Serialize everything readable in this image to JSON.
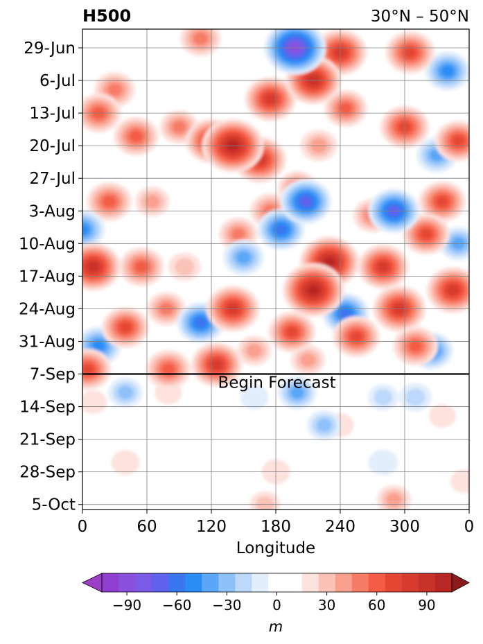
{
  "chart_data": {
    "type": "heatmap",
    "title_left": "H500",
    "title_right": "30°N – 50°N",
    "xlabel": "Longitude",
    "ylabel": "",
    "x_ticks": [
      "0",
      "60",
      "120",
      "180",
      "240",
      "300",
      "0"
    ],
    "x_tick_values": [
      0,
      60,
      120,
      180,
      240,
      300,
      360
    ],
    "xlim": [
      0,
      360
    ],
    "y_ticks": [
      "29-Jun",
      "6-Jul",
      "13-Jul",
      "20-Jul",
      "27-Jul",
      "3-Aug",
      "10-Aug",
      "17-Aug",
      "24-Aug",
      "31-Aug",
      "7-Sep",
      "14-Sep",
      "21-Sep",
      "28-Sep",
      "5-Oct"
    ],
    "y_axis_inverted": true,
    "grid": true,
    "annotation": {
      "text": "Begin Forecast",
      "date": "7-Sep"
    },
    "colorbar": {
      "label": "m",
      "ticks": [
        "−90",
        "−60",
        "−30",
        "0",
        "30",
        "60",
        "90"
      ],
      "levels": [
        -105,
        -95,
        -85,
        -75,
        -65,
        -55,
        -45,
        -35,
        -25,
        -15,
        -5,
        5,
        15,
        25,
        35,
        45,
        55,
        65,
        75,
        85,
        95,
        105
      ],
      "extend": "both",
      "colors": [
        "#8e3fcf",
        "#8a4fdc",
        "#7a5ae6",
        "#5e62ec",
        "#3a76f0",
        "#2a8cf5",
        "#5aa6f7",
        "#8fc1f9",
        "#bcd9fb",
        "#e3eefc",
        "#ffffff",
        "#ffffff",
        "#fde2de",
        "#fbc3b8",
        "#f9a08f",
        "#f77c66",
        "#f35b45",
        "#e54634",
        "#d63b2e",
        "#c93229",
        "#b82724"
      ],
      "under_color": "#9b3fc8",
      "over_color": "#8b1a1a"
    },
    "anomalies": [
      {
        "lon": 198,
        "date": "29-Jun",
        "value": -95
      },
      {
        "lon": 340,
        "date": "4-Jul",
        "value": -55
      },
      {
        "lon": 30,
        "date": "8-Jul",
        "value": 45
      },
      {
        "lon": 110,
        "date": "27-Jun",
        "value": 45
      },
      {
        "lon": 240,
        "date": "30-Jun",
        "value": 75
      },
      {
        "lon": 305,
        "date": "30-Jun",
        "value": 65
      },
      {
        "lon": 175,
        "date": "10-Jul",
        "value": 70
      },
      {
        "lon": 215,
        "date": "6-Jul",
        "value": 80
      },
      {
        "lon": 245,
        "date": "12-Jul",
        "value": 50
      },
      {
        "lon": 140,
        "date": "20-Jul",
        "value": 95
      },
      {
        "lon": 120,
        "date": "19-Jul",
        "value": 70
      },
      {
        "lon": 165,
        "date": "23-Jul",
        "value": 75
      },
      {
        "lon": 300,
        "date": "16-Jul",
        "value": 65
      },
      {
        "lon": 350,
        "date": "19-Jul",
        "value": 60
      },
      {
        "lon": 90,
        "date": "16-Jul",
        "value": 40
      },
      {
        "lon": 50,
        "date": "18-Jul",
        "value": 55
      },
      {
        "lon": 15,
        "date": "13-Jul",
        "value": 55
      },
      {
        "lon": 220,
        "date": "20-Jul",
        "value": 35
      },
      {
        "lon": 330,
        "date": "22-Jul",
        "value": -45
      },
      {
        "lon": 25,
        "date": "1-Aug",
        "value": 55
      },
      {
        "lon": 175,
        "date": "3-Aug",
        "value": 45
      },
      {
        "lon": 200,
        "date": "29-Jul",
        "value": 40
      },
      {
        "lon": 65,
        "date": "1-Aug",
        "value": 30
      },
      {
        "lon": 0,
        "date": "7-Aug",
        "value": -55
      },
      {
        "lon": 145,
        "date": "8-Aug",
        "value": 40
      },
      {
        "lon": 185,
        "date": "7-Aug",
        "value": -60
      },
      {
        "lon": 208,
        "date": "1-Aug",
        "value": -70
      },
      {
        "lon": 270,
        "date": "4-Aug",
        "value": 40
      },
      {
        "lon": 290,
        "date": "3-Aug",
        "value": -70
      },
      {
        "lon": 335,
        "date": "1-Aug",
        "value": 60
      },
      {
        "lon": 320,
        "date": "8-Aug",
        "value": 60
      },
      {
        "lon": 350,
        "date": "10-Aug",
        "value": -40
      },
      {
        "lon": 10,
        "date": "15-Aug",
        "value": 80
      },
      {
        "lon": 55,
        "date": "15-Aug",
        "value": 55
      },
      {
        "lon": 95,
        "date": "15-Aug",
        "value": 25
      },
      {
        "lon": 150,
        "date": "13-Aug",
        "value": -45
      },
      {
        "lon": 230,
        "date": "14-Aug",
        "value": 90
      },
      {
        "lon": 215,
        "date": "20-Aug",
        "value": 95
      },
      {
        "lon": 280,
        "date": "15-Aug",
        "value": 70
      },
      {
        "lon": 295,
        "date": "24-Aug",
        "value": 75
      },
      {
        "lon": 345,
        "date": "20-Aug",
        "value": 75
      },
      {
        "lon": 140,
        "date": "24-Aug",
        "value": 75
      },
      {
        "lon": 78,
        "date": "24-Aug",
        "value": 40
      },
      {
        "lon": 40,
        "date": "28-Aug",
        "value": 60
      },
      {
        "lon": 110,
        "date": "27-Aug",
        "value": -60
      },
      {
        "lon": 245,
        "date": "25-Aug",
        "value": -60
      },
      {
        "lon": 15,
        "date": "1-Sep",
        "value": -55
      },
      {
        "lon": 195,
        "date": "29-Aug",
        "value": 60
      },
      {
        "lon": 255,
        "date": "30-Aug",
        "value": 60
      },
      {
        "lon": 310,
        "date": "1-Sep",
        "value": 55
      },
      {
        "lon": 325,
        "date": "2-Sep",
        "value": -50
      },
      {
        "lon": 160,
        "date": "2-Sep",
        "value": 30
      },
      {
        "lon": 125,
        "date": "5-Sep",
        "value": 70
      },
      {
        "lon": 80,
        "date": "6-Sep",
        "value": 55
      },
      {
        "lon": 5,
        "date": "6-Sep",
        "value": 60
      },
      {
        "lon": 210,
        "date": "4-Sep",
        "value": 30
      },
      {
        "lon": 40,
        "date": "11-Sep",
        "value": -30
      },
      {
        "lon": 80,
        "date": "11-Sep",
        "value": 12
      },
      {
        "lon": 200,
        "date": "11-Sep",
        "value": -40
      },
      {
        "lon": 225,
        "date": "18-Sep",
        "value": -30
      },
      {
        "lon": 280,
        "date": "12-Sep",
        "value": -20
      },
      {
        "lon": 310,
        "date": "12-Sep",
        "value": -25
      },
      {
        "lon": 160,
        "date": "12-Sep",
        "value": -15
      },
      {
        "lon": 10,
        "date": "13-Sep",
        "value": 12
      },
      {
        "lon": 240,
        "date": "18-Sep",
        "value": 12
      },
      {
        "lon": 335,
        "date": "16-Sep",
        "value": 12
      },
      {
        "lon": 280,
        "date": "26-Sep",
        "value": -18
      },
      {
        "lon": 40,
        "date": "26-Sep",
        "value": 15
      },
      {
        "lon": 180,
        "date": "28-Sep",
        "value": 15
      },
      {
        "lon": 290,
        "date": "4-Oct",
        "value": 30
      },
      {
        "lon": 170,
        "date": "5-Oct",
        "value": 20
      },
      {
        "lon": 355,
        "date": "30-Sep",
        "value": 12
      }
    ]
  }
}
